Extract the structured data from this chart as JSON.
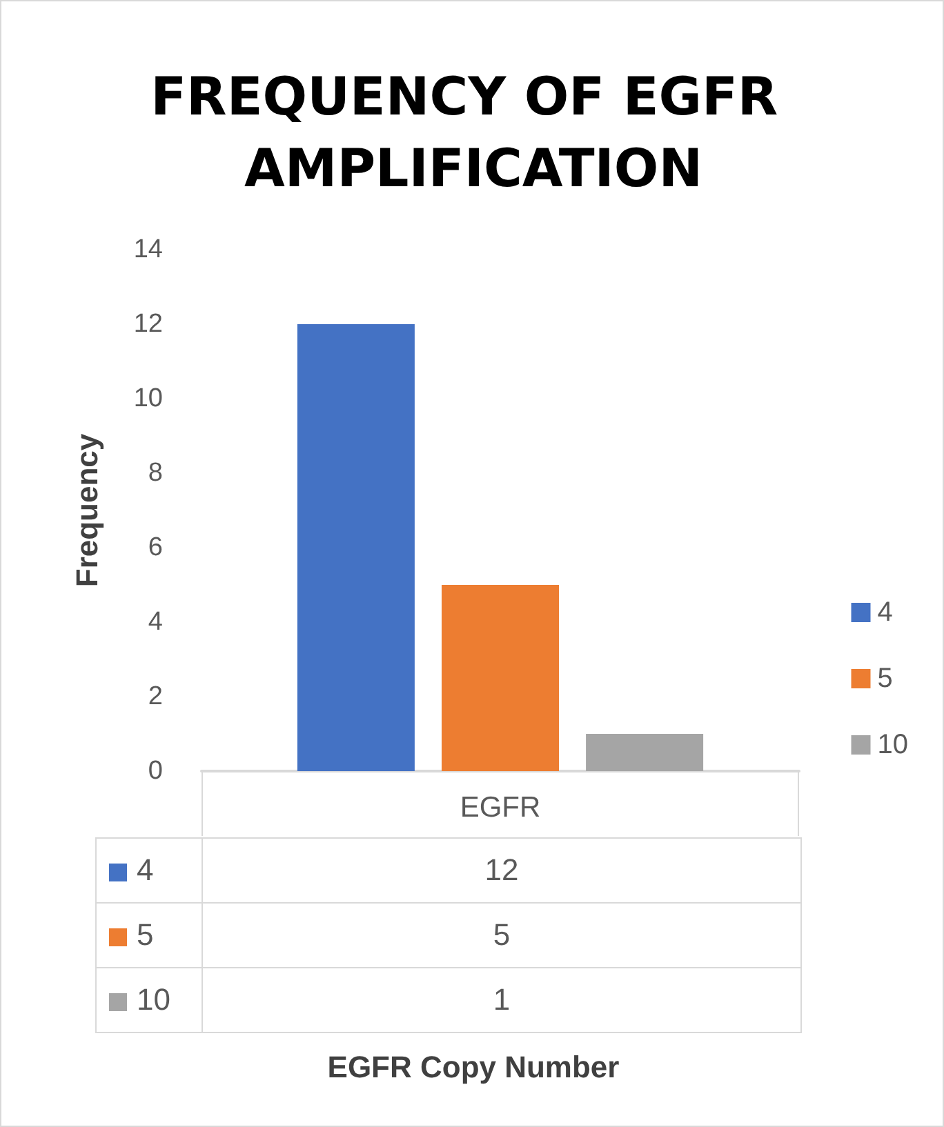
{
  "chart_data": {
    "type": "bar",
    "title": "FREQUENCY OF EGFR AMPLIFICATION",
    "ylabel": "Frequency",
    "categories": [
      "EGFR"
    ],
    "series": [
      {
        "name": "4",
        "color": "#4472c4",
        "values": [
          12
        ]
      },
      {
        "name": "5",
        "color": "#ed7d31",
        "values": [
          5
        ]
      },
      {
        "name": "10",
        "color": "#a5a5a5",
        "values": [
          1
        ]
      }
    ],
    "ylim": [
      0,
      14
    ],
    "yticks": [
      0,
      2,
      4,
      6,
      8,
      10,
      12,
      14
    ],
    "grid": false,
    "legend": "right",
    "annotations": [
      "12",
      "5",
      "1",
      "EGFR Copy Number"
    ]
  }
}
